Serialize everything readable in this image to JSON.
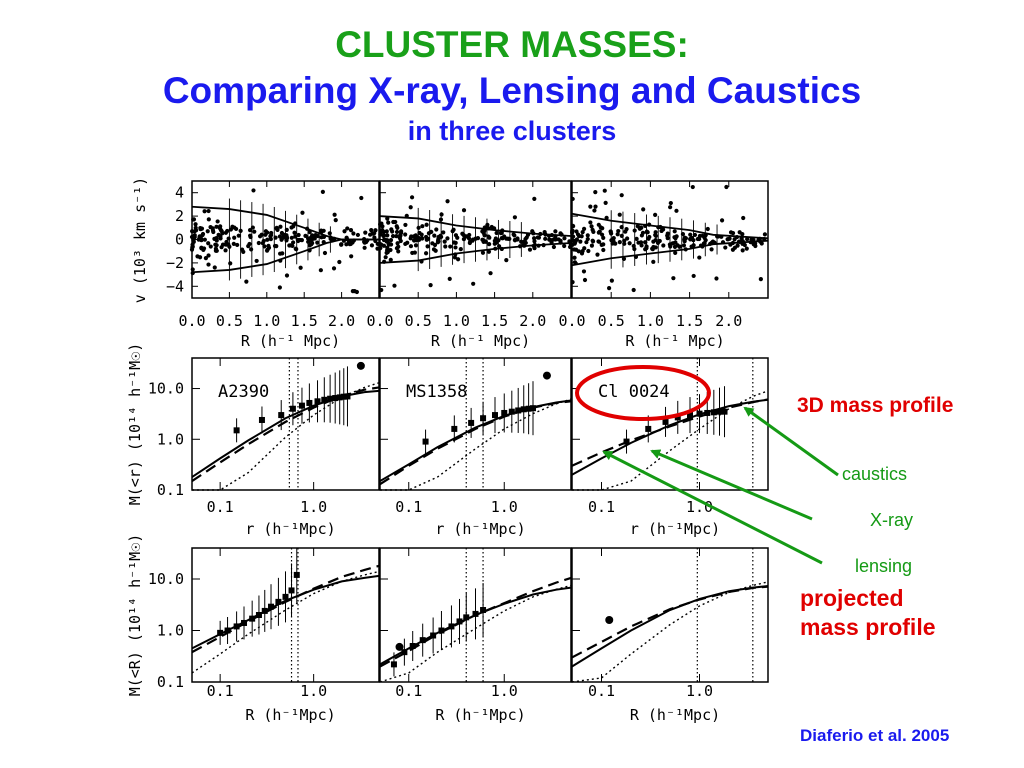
{
  "slide": {
    "title_line1": "CLUSTER MASSES:",
    "title_line2": "Comparing X-ray, Lensing and Caustics",
    "title_line3": "in three clusters",
    "citation": "Diaferio et al. 2005",
    "annotations": {
      "mass3d": "3D mass profile",
      "caustics": "caustics",
      "xray": "X-ray",
      "lensing": "lensing",
      "projected_line1": "projected",
      "projected_line2": "mass profile"
    },
    "colors": {
      "title_green": "#19a019",
      "title_blue": "#1a1aee",
      "annotation_red": "#e00000",
      "arrow_green": "#159a15",
      "highlight_circle": "#e00000"
    }
  },
  "chart_data": [
    {
      "type": "scatter",
      "row": "caustic diagrams",
      "xlabel": "R (h⁻¹ Mpc)",
      "ylabel": "v (10³ km s⁻¹)",
      "xlim": [
        0.0,
        2.5
      ],
      "ylim": [
        -5,
        5
      ],
      "xticks": [
        "0.0",
        "0.5",
        "1.0",
        "1.5",
        "2.0"
      ],
      "yticks": [
        "4",
        "2",
        "0",
        "−2",
        "−4"
      ],
      "panels": [
        {
          "cluster": "A2390",
          "caustic_R": [
            0.0,
            0.5,
            1.0,
            1.5,
            1.8,
            2.0,
            2.5
          ],
          "caustic_v": [
            2.8,
            2.6,
            2.1,
            1.0,
            0.3,
            0.0,
            0.0
          ]
        },
        {
          "cluster": "MS1358",
          "caustic_R": [
            0.0,
            0.5,
            1.0,
            1.5,
            2.0,
            2.5
          ],
          "caustic_v": [
            2.0,
            1.8,
            1.2,
            0.8,
            0.5,
            0.3
          ]
        },
        {
          "cluster": "Cl 0024",
          "caustic_R": [
            0.0,
            0.5,
            1.0,
            1.5,
            1.8,
            2.5
          ],
          "caustic_v": [
            2.2,
            1.6,
            1.2,
            0.8,
            0.4,
            0.1
          ]
        }
      ]
    },
    {
      "type": "line",
      "row": "3D mass profile",
      "xlabel": "r (h⁻¹Mpc)",
      "ylabel": "M(<r)  (10¹⁴ h⁻¹M☉)",
      "xscale": "log",
      "yscale": "log",
      "xlim": [
        0.05,
        5
      ],
      "ylim": [
        0.1,
        40
      ],
      "xticks": [
        "0.1",
        "1.0"
      ],
      "yticks": [
        "10.0",
        "1.0",
        "0.1"
      ],
      "panels": [
        {
          "label": "A2390",
          "r": [
            0.05,
            0.1,
            0.2,
            0.5,
            1.0,
            2.0,
            3.5,
            5.0
          ],
          "caustics": [
            0.18,
            0.42,
            0.95,
            2.6,
            4.6,
            7.0,
            8.5,
            9.0
          ],
          "xray": [
            0.15,
            0.35,
            0.8,
            2.2,
            4.2,
            7.2,
            9.5,
            10.5
          ],
          "lensing": [
            0.02,
            0.07,
            0.22,
            1.1,
            3.0,
            6.8,
            10.5,
            13.0
          ],
          "data_r": [
            0.15,
            0.28,
            0.45,
            0.6,
            0.75,
            0.9,
            1.1,
            1.3,
            1.5,
            1.7,
            1.9,
            2.1,
            2.3
          ],
          "data_M": [
            1.5,
            2.4,
            3.0,
            4.0,
            4.6,
            5.2,
            5.6,
            6.0,
            6.3,
            6.5,
            6.7,
            6.9,
            7.0
          ],
          "point_r": [
            3.2
          ],
          "point_M": [
            28.0
          ],
          "vlines_r": [
            0.55,
            0.68
          ]
        },
        {
          "label": "MS1358",
          "r": [
            0.05,
            0.1,
            0.2,
            0.5,
            1.0,
            2.0,
            3.5,
            5.0
          ],
          "caustics": [
            0.15,
            0.32,
            0.7,
            1.7,
            2.9,
            4.3,
            5.3,
            5.8
          ],
          "xray": [
            0.13,
            0.3,
            0.65,
            1.6,
            2.8,
            4.2,
            5.2,
            5.6
          ],
          "lensing": [
            0.02,
            0.06,
            0.18,
            0.65,
            1.6,
            3.2,
            5.0,
            6.2
          ],
          "data_r": [
            0.15,
            0.3,
            0.45,
            0.6,
            0.8,
            1.0,
            1.2,
            1.4,
            1.6,
            1.8,
            2.0
          ],
          "data_M": [
            0.9,
            1.6,
            2.1,
            2.6,
            3.0,
            3.3,
            3.5,
            3.7,
            3.9,
            4.0,
            4.1
          ],
          "point_r": [
            2.8
          ],
          "point_M": [
            18.0
          ],
          "vlines_r": [
            0.4,
            0.6
          ]
        },
        {
          "label": "Cl 0024",
          "r": [
            0.05,
            0.1,
            0.2,
            0.5,
            1.0,
            2.0,
            3.5,
            5.0
          ],
          "caustics": [
            0.2,
            0.42,
            0.85,
            1.9,
            3.1,
            4.5,
            5.5,
            6.0
          ],
          "xray": [
            0.3,
            0.55,
            0.95,
            1.8,
            2.8,
            4.2,
            5.4,
            6.1
          ],
          "lensing": [
            0.02,
            0.05,
            0.15,
            0.6,
            1.6,
            4.0,
            7.0,
            9.0
          ],
          "data_r": [
            0.18,
            0.3,
            0.45,
            0.6,
            0.8,
            1.0,
            1.2,
            1.4,
            1.6,
            1.8
          ],
          "data_M": [
            0.9,
            1.6,
            2.2,
            2.7,
            3.0,
            3.2,
            3.3,
            3.4,
            3.5,
            3.5
          ],
          "point_r": [],
          "point_M": [],
          "vlines_r": [
            0.95,
            3.5
          ]
        }
      ]
    },
    {
      "type": "line",
      "row": "projected mass profile",
      "xlabel": "R (h⁻¹Mpc)",
      "ylabel": "M(<R)  (10¹⁴ h⁻¹M☉)",
      "xscale": "log",
      "yscale": "log",
      "xlim": [
        0.05,
        5
      ],
      "ylim": [
        0.1,
        40
      ],
      "xticks": [
        "0.1",
        "1.0"
      ],
      "yticks": [
        "10.0",
        "1.0",
        "0.1"
      ],
      "panels": [
        {
          "label": "",
          "r": [
            0.05,
            0.1,
            0.2,
            0.5,
            1.0,
            2.0,
            3.5,
            5.0
          ],
          "caustics": [
            0.45,
            0.85,
            1.6,
            3.8,
            6.2,
            9.0,
            10.5,
            11.5
          ],
          "xray": [
            0.38,
            0.75,
            1.5,
            3.6,
            6.5,
            11.0,
            15.0,
            18.0
          ],
          "lensing": [
            0.15,
            0.35,
            0.85,
            2.5,
            5.2,
            9.0,
            12.0,
            14.0
          ],
          "data_r": [
            0.1,
            0.12,
            0.15,
            0.18,
            0.22,
            0.26,
            0.3,
            0.35,
            0.42,
            0.5,
            0.58,
            0.66
          ],
          "data_M": [
            0.9,
            1.0,
            1.2,
            1.4,
            1.7,
            2.0,
            2.4,
            2.9,
            3.6,
            4.5,
            6.0,
            12.0
          ],
          "point_r": [],
          "point_M": [],
          "vlines_r": [
            0.58,
            0.68
          ]
        },
        {
          "label": "",
          "r": [
            0.05,
            0.1,
            0.2,
            0.5,
            1.0,
            2.0,
            3.5,
            5.0
          ],
          "caustics": [
            0.22,
            0.45,
            0.9,
            2.0,
            3.3,
            5.0,
            6.2,
            6.8
          ],
          "xray": [
            0.2,
            0.4,
            0.85,
            2.0,
            3.4,
            5.8,
            8.5,
            10.5
          ],
          "lensing": [
            0.06,
            0.15,
            0.38,
            1.1,
            2.4,
            4.5,
            6.3,
            7.5
          ],
          "data_r": [
            0.07,
            0.09,
            0.11,
            0.14,
            0.18,
            0.22,
            0.28,
            0.34,
            0.4,
            0.5,
            0.6
          ],
          "data_M": [
            0.22,
            0.38,
            0.5,
            0.65,
            0.8,
            1.0,
            1.2,
            1.5,
            1.8,
            2.1,
            2.5
          ],
          "point_r": [
            0.08
          ],
          "point_M": [
            0.48
          ],
          "vlines_r": [
            0.4,
            0.6
          ]
        },
        {
          "label": "",
          "r": [
            0.05,
            0.1,
            0.2,
            0.5,
            1.0,
            2.0,
            3.5,
            5.0
          ],
          "caustics": [
            0.2,
            0.45,
            1.0,
            2.5,
            4.1,
            5.8,
            6.8,
            7.3
          ],
          "xray": [
            0.3,
            0.6,
            1.2,
            2.6,
            4.0,
            5.6,
            6.7,
            7.1
          ],
          "lensing": [
            0.05,
            0.12,
            0.35,
            1.3,
            3.0,
            5.5,
            7.5,
            8.8
          ],
          "data_r": [],
          "data_M": [],
          "point_r": [
            0.12
          ],
          "point_M": [
            1.6
          ],
          "vlines_r": [
            0.95,
            3.5
          ]
        }
      ]
    }
  ]
}
